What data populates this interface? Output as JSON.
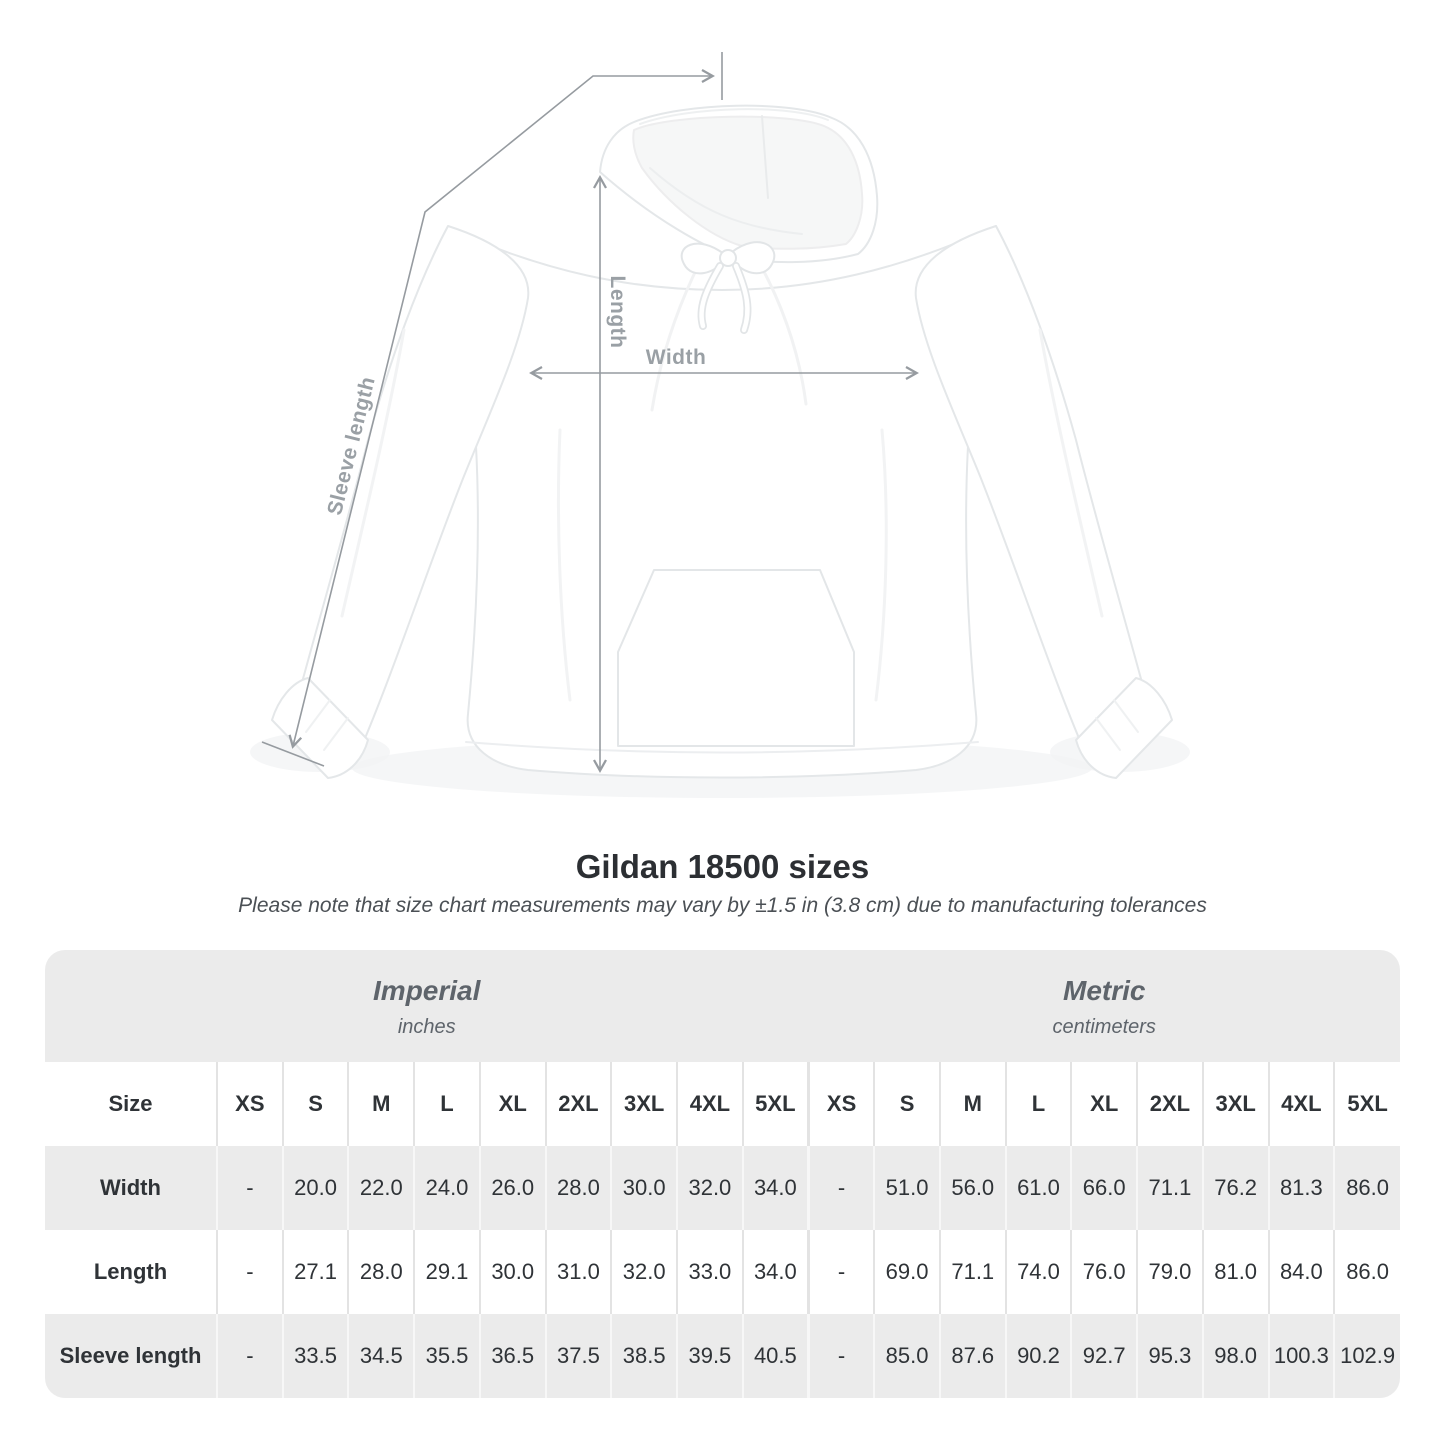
{
  "diagram": {
    "labels": {
      "sleeve": "Sleeve length",
      "length": "Length",
      "width": "Width"
    }
  },
  "title": "Gildan 18500 sizes",
  "note": "Please note that size chart measurements may vary by ±1.5 in (3.8 cm) due to manufacturing tolerances",
  "table": {
    "size_header": "Size",
    "unit_groups": [
      {
        "name": "Imperial",
        "unit": "inches"
      },
      {
        "name": "Metric",
        "unit": "centimeters"
      }
    ],
    "sizes": [
      "XS",
      "S",
      "M",
      "L",
      "XL",
      "2XL",
      "3XL",
      "4XL",
      "5XL"
    ],
    "rows": [
      {
        "label": "Width",
        "imperial": [
          "-",
          "20.0",
          "22.0",
          "24.0",
          "26.0",
          "28.0",
          "30.0",
          "32.0",
          "34.0"
        ],
        "metric": [
          "-",
          "51.0",
          "56.0",
          "61.0",
          "66.0",
          "71.1",
          "76.2",
          "81.3",
          "86.0"
        ]
      },
      {
        "label": "Length",
        "imperial": [
          "-",
          "27.1",
          "28.0",
          "29.1",
          "30.0",
          "31.0",
          "32.0",
          "33.0",
          "34.0"
        ],
        "metric": [
          "-",
          "69.0",
          "71.1",
          "74.0",
          "76.0",
          "79.0",
          "81.0",
          "84.0",
          "86.0"
        ]
      },
      {
        "label": "Sleeve length",
        "imperial": [
          "-",
          "33.5",
          "34.5",
          "35.5",
          "36.5",
          "37.5",
          "38.5",
          "39.5",
          "40.5"
        ],
        "metric": [
          "-",
          "85.0",
          "87.6",
          "90.2",
          "92.7",
          "95.3",
          "98.0",
          "100.3",
          "102.9"
        ]
      }
    ]
  },
  "colors": {
    "band_gray": "#ebebeb",
    "measure_line": "#969ba0",
    "measure_label": "#9aa0a5",
    "title_text": "#2c2f33",
    "note_text": "#4b5055",
    "header_text": "#5e646b",
    "value_text": "#2f3337"
  }
}
